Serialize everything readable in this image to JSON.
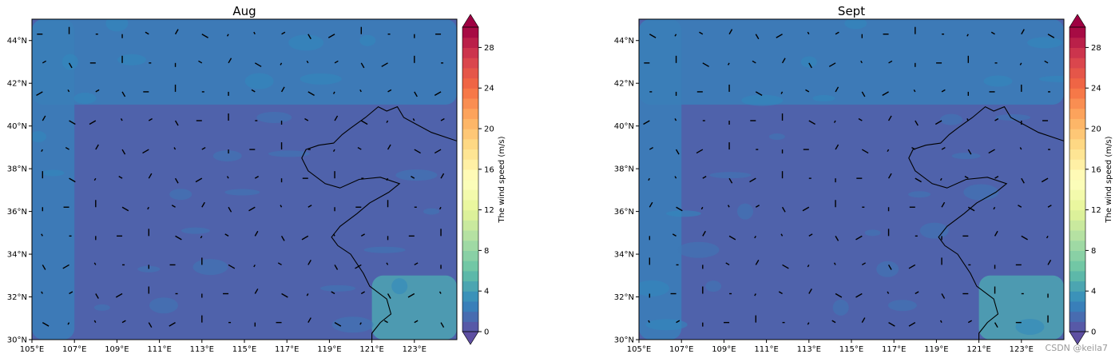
{
  "watermark": "CSDN @keila7",
  "chart_data": [
    {
      "type": "heatmap",
      "title": "Aug",
      "xlabel": "",
      "ylabel": "",
      "xlim": [
        105,
        125
      ],
      "ylim": [
        30,
        45
      ],
      "x_ticks": [
        "105°E",
        "107°E",
        "109°E",
        "111°E",
        "113°E",
        "115°E",
        "117°E",
        "119°E",
        "121°E",
        "123°E"
      ],
      "y_ticks": [
        "30°N",
        "32°N",
        "34°N",
        "36°N",
        "38°N",
        "40°N",
        "42°N",
        "44°N"
      ],
      "colorbar": {
        "label": "The wind speed (m/s)",
        "ticks": [
          "0",
          "4",
          "8",
          "12",
          "16",
          "20",
          "24",
          "28"
        ],
        "range": [
          0,
          30
        ],
        "colormap": "Spectral_r"
      },
      "background_speed_mps": 1,
      "wind_bands_mps": [
        {
          "description": "northern band",
          "lat_range": [
            41,
            45
          ],
          "speed": 2.5
        },
        {
          "description": "western edge",
          "lon_range": [
            105,
            107
          ],
          "speed": 2.5
        },
        {
          "description": "southeast corner",
          "lon_range": [
            121,
            125
          ],
          "lat_range": [
            30,
            33
          ],
          "speed": 4.5
        }
      ]
    },
    {
      "type": "heatmap",
      "title": "Sept",
      "xlabel": "",
      "ylabel": "",
      "xlim": [
        105,
        125
      ],
      "ylim": [
        30,
        45
      ],
      "x_ticks": [
        "105°E",
        "107°E",
        "109°E",
        "111°E",
        "113°E",
        "115°E",
        "117°E",
        "119°E",
        "121°E",
        "123°E"
      ],
      "y_ticks": [
        "30°N",
        "32°N",
        "34°N",
        "36°N",
        "38°N",
        "40°N",
        "42°N",
        "44°N"
      ],
      "colorbar": {
        "label": "The wind speed (m/s)",
        "ticks": [
          "0",
          "4",
          "8",
          "12",
          "16",
          "20",
          "24",
          "28"
        ],
        "range": [
          0,
          30
        ],
        "colormap": "Spectral_r"
      },
      "background_speed_mps": 1,
      "wind_bands_mps": [
        {
          "description": "northern band",
          "lat_range": [
            41,
            45
          ],
          "speed": 2.5
        },
        {
          "description": "western edge",
          "lon_range": [
            105,
            107
          ],
          "speed": 2.5
        },
        {
          "description": "southeast corner",
          "lon_range": [
            121,
            125
          ],
          "lat_range": [
            30,
            33
          ],
          "speed": 4.5
        }
      ]
    }
  ]
}
